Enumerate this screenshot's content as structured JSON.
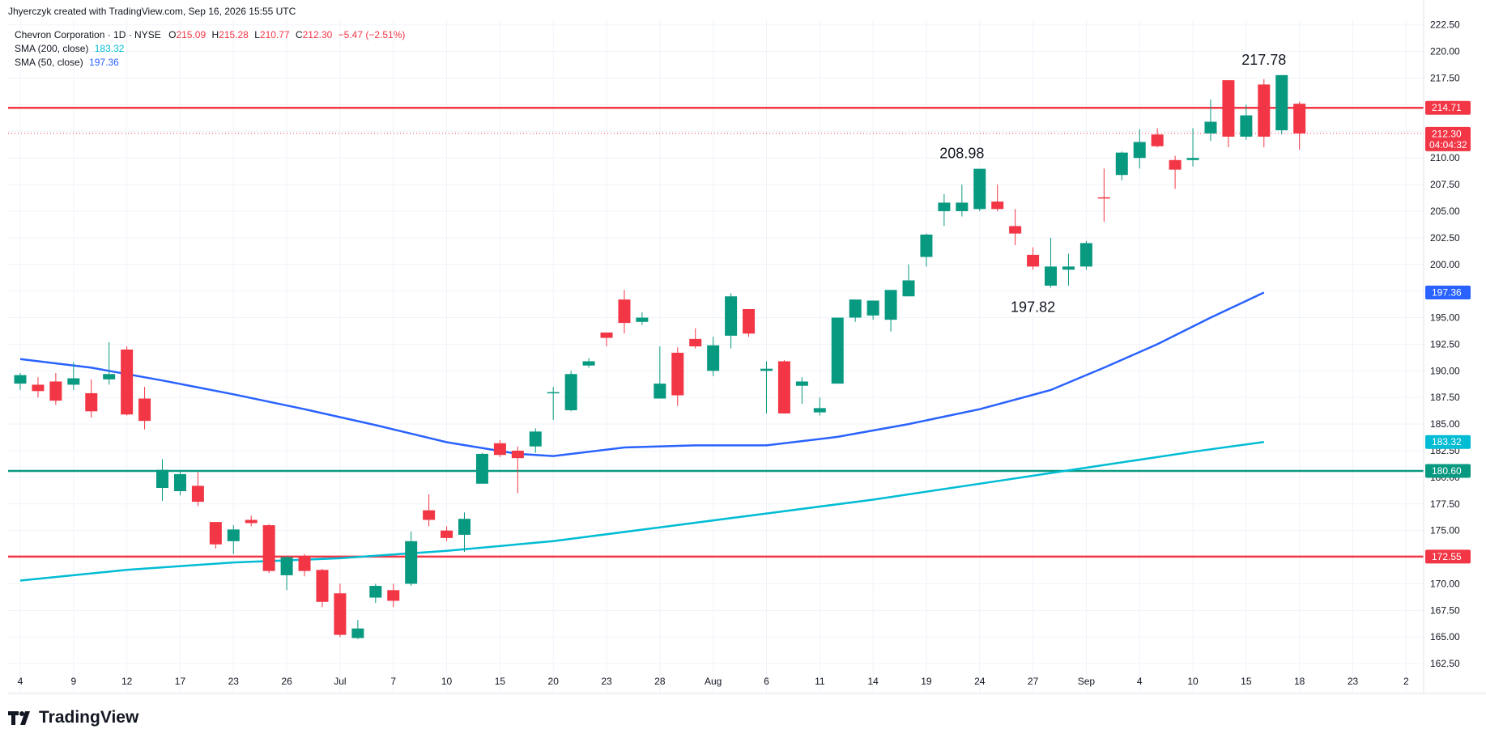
{
  "header": {
    "attribution": "Jhyerczyk created with TradingView.com, Sep 16, 2026 15:55 UTC"
  },
  "legend": {
    "symbol": "Chevron Corporation · 1D · NYSE",
    "o_label": "O",
    "o_value": "215.09",
    "h_label": "H",
    "h_value": "215.28",
    "l_label": "L",
    "l_value": "210.77",
    "c_label": "C",
    "c_value": "212.30",
    "change": "−5.47 (−2.51%)",
    "sma200_label": "SMA (200, close)",
    "sma200_value": "183.32",
    "sma50_label": "SMA (50, close)",
    "sma50_value": "197.36"
  },
  "brand": {
    "name": "TradingView"
  },
  "colors": {
    "up": "#089981",
    "down": "#f23645",
    "sma50": "#2962ff",
    "sma200": "#00bcd4",
    "resistance": "#f23645",
    "support": "#089981",
    "grid": "#f0f3fa"
  },
  "chart_data": {
    "type": "candlestick",
    "ylim": [
      160,
      224
    ],
    "y_ticks": [
      "162.50",
      "165.00",
      "167.50",
      "170.00",
      "172.50",
      "175.00",
      "177.50",
      "180.00",
      "182.50",
      "185.00",
      "187.50",
      "190.00",
      "192.50",
      "195.00",
      "197.50",
      "200.00",
      "202.50",
      "205.00",
      "207.50",
      "210.00",
      "212.50",
      "215.00",
      "217.50",
      "220.00",
      "222.50"
    ],
    "x_ticks": [
      {
        "i": 0,
        "label": "4"
      },
      {
        "i": 3,
        "label": "9"
      },
      {
        "i": 6,
        "label": "12"
      },
      {
        "i": 9,
        "label": "17"
      },
      {
        "i": 12,
        "label": "23"
      },
      {
        "i": 15,
        "label": "26"
      },
      {
        "i": 18,
        "label": "Jul"
      },
      {
        "i": 21,
        "label": "7"
      },
      {
        "i": 24,
        "label": "10"
      },
      {
        "i": 27,
        "label": "15"
      },
      {
        "i": 30,
        "label": "20"
      },
      {
        "i": 33,
        "label": "23"
      },
      {
        "i": 36,
        "label": "28"
      },
      {
        "i": 39,
        "label": "Aug"
      },
      {
        "i": 42,
        "label": "6"
      },
      {
        "i": 45,
        "label": "11"
      },
      {
        "i": 48,
        "label": "14"
      },
      {
        "i": 51,
        "label": "19"
      },
      {
        "i": 54,
        "label": "24"
      },
      {
        "i": 57,
        "label": "27"
      },
      {
        "i": 60,
        "label": "Sep"
      },
      {
        "i": 63,
        "label": "4"
      },
      {
        "i": 66,
        "label": "10"
      },
      {
        "i": 69,
        "label": "15"
      },
      {
        "i": 72,
        "label": "18"
      },
      {
        "i": 75,
        "label": "23"
      },
      {
        "i": 78,
        "label": "2"
      }
    ],
    "candles": [
      [
        188.8,
        189.8,
        188.2,
        189.6
      ],
      [
        188.7,
        189.4,
        187.5,
        188.1
      ],
      [
        189.0,
        189.8,
        186.8,
        187.2
      ],
      [
        188.7,
        190.8,
        188.2,
        189.3
      ],
      [
        187.9,
        189.2,
        185.6,
        186.2
      ],
      [
        189.2,
        192.7,
        188.7,
        189.7
      ],
      [
        192.0,
        192.3,
        185.8,
        185.9
      ],
      [
        187.4,
        188.5,
        184.5,
        185.3
      ],
      [
        179.0,
        181.7,
        177.8,
        180.7
      ],
      [
        178.7,
        180.6,
        178.3,
        180.3
      ],
      [
        179.2,
        180.5,
        177.3,
        177.7
      ],
      [
        175.8,
        175.8,
        173.3,
        173.7
      ],
      [
        174.0,
        175.5,
        172.8,
        175.1
      ],
      [
        176.0,
        176.4,
        175.4,
        175.7
      ],
      [
        175.5,
        175.6,
        171.0,
        171.2
      ],
      [
        170.8,
        172.6,
        169.4,
        172.5
      ],
      [
        172.5,
        172.8,
        170.7,
        171.2
      ],
      [
        171.3,
        171.4,
        167.8,
        168.3
      ],
      [
        169.1,
        170.0,
        165.0,
        165.2
      ],
      [
        164.9,
        166.6,
        164.8,
        165.8
      ],
      [
        168.7,
        170.0,
        168.2,
        169.8
      ],
      [
        169.4,
        170.0,
        167.8,
        168.4
      ],
      [
        170.0,
        174.9,
        169.8,
        174.0
      ],
      [
        176.9,
        178.4,
        175.4,
        176.0
      ],
      [
        175.0,
        175.4,
        174.0,
        174.3
      ],
      [
        174.6,
        176.7,
        173.0,
        176.1
      ],
      [
        179.4,
        182.3,
        179.4,
        182.2
      ],
      [
        183.2,
        183.5,
        181.9,
        182.1
      ],
      [
        182.5,
        182.9,
        178.5,
        181.8
      ],
      [
        182.9,
        184.6,
        182.3,
        184.3
      ],
      [
        188.0,
        188.5,
        185.4,
        188.0
      ],
      [
        186.3,
        190.0,
        186.2,
        189.7
      ],
      [
        190.5,
        191.2,
        190.3,
        190.9
      ],
      [
        193.6,
        193.6,
        192.3,
        193.1
      ],
      [
        196.7,
        197.6,
        193.5,
        194.5
      ],
      [
        194.6,
        195.5,
        194.3,
        195.0
      ],
      [
        187.4,
        192.3,
        187.4,
        188.8
      ],
      [
        191.7,
        192.2,
        186.7,
        187.7
      ],
      [
        193.0,
        194.0,
        192.1,
        192.3
      ],
      [
        190.0,
        193.2,
        189.5,
        192.4
      ],
      [
        193.3,
        197.3,
        192.1,
        197.0
      ],
      [
        195.8,
        195.8,
        193.2,
        193.5
      ],
      [
        190.0,
        190.9,
        186.0,
        190.2
      ],
      [
        190.9,
        191.0,
        186.0,
        186.0
      ],
      [
        188.6,
        189.4,
        186.9,
        189.0
      ],
      [
        186.1,
        187.5,
        185.8,
        186.5
      ],
      [
        188.8,
        195.0,
        188.8,
        195.0
      ],
      [
        195.0,
        196.7,
        194.6,
        196.7
      ],
      [
        195.2,
        196.6,
        194.8,
        196.6
      ],
      [
        194.8,
        197.6,
        193.7,
        197.6
      ],
      [
        197.0,
        200.0,
        197.0,
        198.5
      ],
      [
        200.7,
        202.9,
        199.8,
        202.8
      ],
      [
        205.0,
        206.6,
        203.6,
        205.8
      ],
      [
        205.0,
        207.5,
        204.5,
        205.8
      ],
      [
        205.2,
        208.98,
        205.0,
        208.98
      ],
      [
        205.9,
        207.5,
        205.0,
        205.2
      ],
      [
        203.6,
        205.2,
        201.8,
        202.9
      ],
      [
        200.9,
        201.6,
        199.5,
        199.8
      ],
      [
        198.0,
        202.5,
        197.82,
        199.8
      ],
      [
        199.5,
        201.0,
        198.0,
        199.8
      ],
      [
        199.8,
        202.2,
        199.5,
        202.0
      ],
      [
        206.3,
        209.0,
        204.0,
        206.2
      ],
      [
        208.4,
        210.6,
        207.9,
        210.5
      ],
      [
        210.0,
        212.7,
        209.0,
        211.5
      ],
      [
        212.2,
        212.8,
        211.0,
        211.1
      ],
      [
        209.8,
        210.2,
        207.1,
        208.9
      ],
      [
        209.8,
        212.8,
        209.2,
        210.0
      ],
      [
        212.3,
        215.5,
        211.6,
        213.4
      ],
      [
        217.3,
        217.3,
        211.0,
        212.0
      ],
      [
        212.0,
        215.0,
        211.7,
        214.0
      ],
      [
        216.9,
        217.4,
        211.0,
        212.0
      ],
      [
        212.6,
        217.78,
        212.2,
        217.78
      ],
      [
        215.09,
        215.28,
        210.77,
        212.3
      ]
    ],
    "sma50": [
      {
        "i": 0,
        "v": 191.1
      },
      {
        "i": 4,
        "v": 190.3
      },
      {
        "i": 8,
        "v": 189.1
      },
      {
        "i": 12,
        "v": 187.8
      },
      {
        "i": 16,
        "v": 186.4
      },
      {
        "i": 20,
        "v": 184.9
      },
      {
        "i": 24,
        "v": 183.3
      },
      {
        "i": 28,
        "v": 182.2
      },
      {
        "i": 30,
        "v": 182.0
      },
      {
        "i": 34,
        "v": 182.8
      },
      {
        "i": 38,
        "v": 183.0
      },
      {
        "i": 42,
        "v": 183.0
      },
      {
        "i": 46,
        "v": 183.8
      },
      {
        "i": 50,
        "v": 185.0
      },
      {
        "i": 54,
        "v": 186.4
      },
      {
        "i": 58,
        "v": 188.2
      },
      {
        "i": 61,
        "v": 190.3
      },
      {
        "i": 64,
        "v": 192.5
      },
      {
        "i": 67,
        "v": 195.0
      },
      {
        "i": 70,
        "v": 197.36
      }
    ],
    "sma200": [
      {
        "i": 0,
        "v": 170.3
      },
      {
        "i": 6,
        "v": 171.3
      },
      {
        "i": 12,
        "v": 172.0
      },
      {
        "i": 18,
        "v": 172.4
      },
      {
        "i": 24,
        "v": 173.1
      },
      {
        "i": 30,
        "v": 174.0
      },
      {
        "i": 36,
        "v": 175.3
      },
      {
        "i": 42,
        "v": 176.6
      },
      {
        "i": 48,
        "v": 177.9
      },
      {
        "i": 54,
        "v": 179.4
      },
      {
        "i": 60,
        "v": 180.9
      },
      {
        "i": 66,
        "v": 182.4
      },
      {
        "i": 70,
        "v": 183.32
      }
    ],
    "levels": [
      {
        "value": 214.71,
        "label": "214.71",
        "color": "#f23645"
      },
      {
        "value": 180.6,
        "label": "180.60",
        "color": "#089981"
      },
      {
        "value": 172.55,
        "label": "172.55",
        "color": "#f23645"
      }
    ],
    "annotations": [
      {
        "i": 70,
        "value": 217.78,
        "label": "217.78",
        "pos": "above"
      },
      {
        "i": 53,
        "value": 208.98,
        "label": "208.98",
        "pos": "above"
      },
      {
        "i": 57,
        "value": 197.82,
        "label": "197.82",
        "pos": "below"
      }
    ],
    "price_tag": {
      "label": "212.30",
      "countdown": "04:04:32"
    },
    "sma50_tag": "197.36",
    "sma200_tag": "183.32"
  }
}
